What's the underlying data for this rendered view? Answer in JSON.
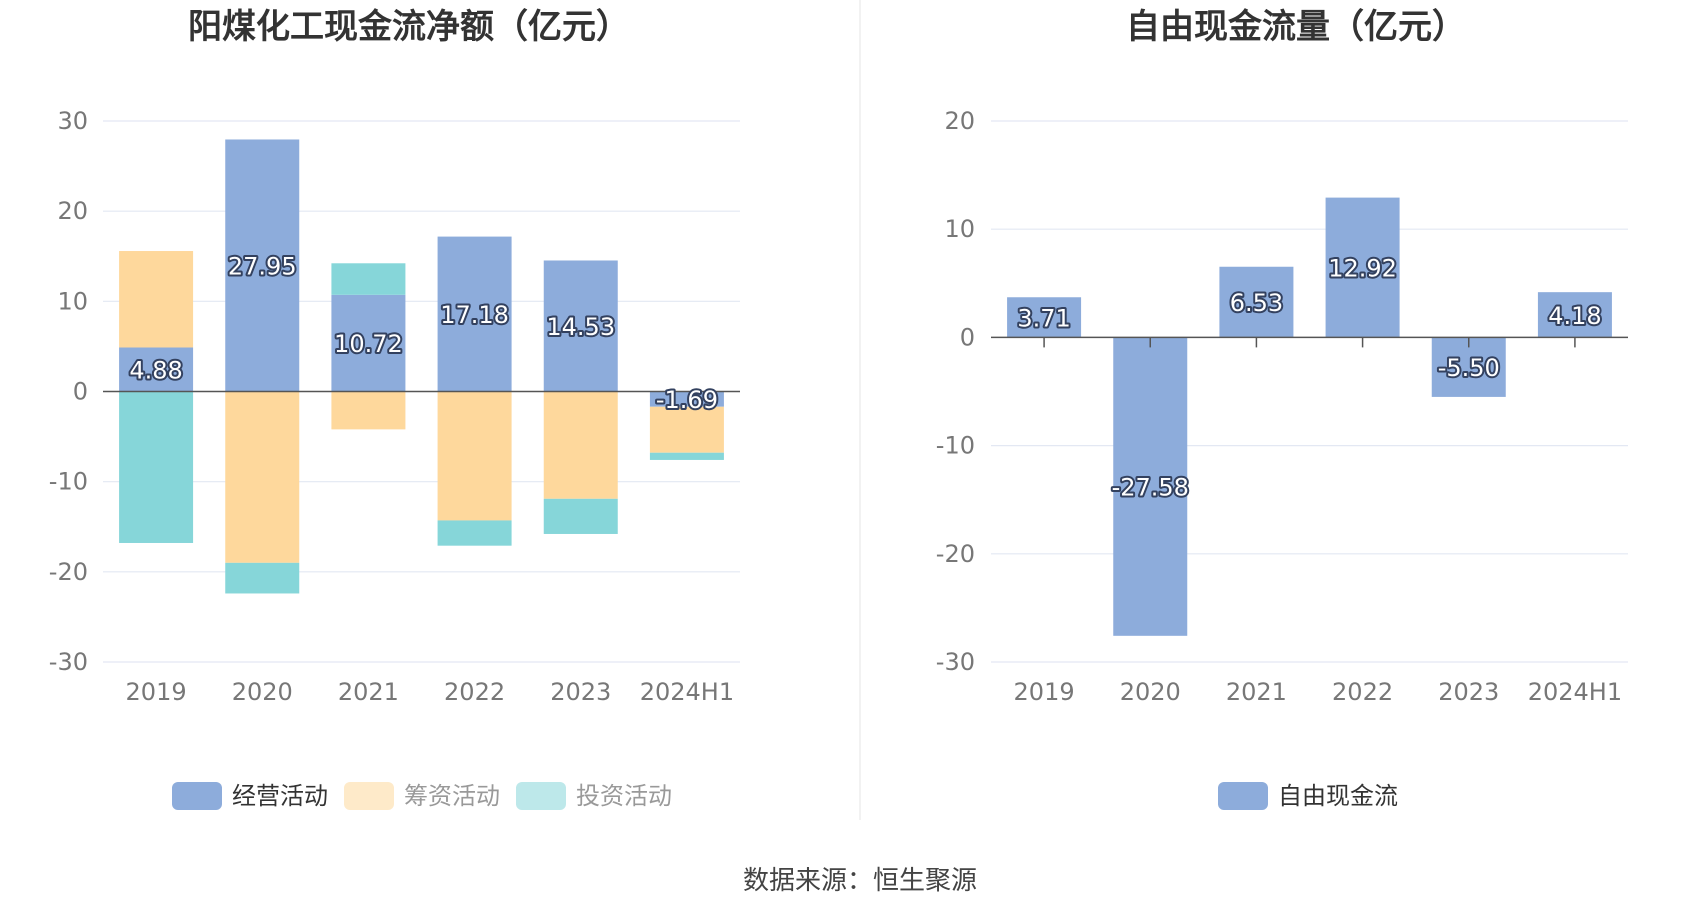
{
  "chart_data": [
    {
      "type": "bar",
      "stacked": true,
      "title": "阳煤化工现金流净额（亿元）",
      "categories": [
        "2019",
        "2020",
        "2021",
        "2022",
        "2023",
        "2024H1"
      ],
      "ylim": [
        -30,
        30
      ],
      "yticks": [
        30,
        20,
        10,
        0,
        -10,
        -20,
        -30
      ],
      "grid": true,
      "legend_position": "bottom",
      "series": [
        {
          "name": "经营活动",
          "color": "#8dacdb",
          "values": [
            4.88,
            27.95,
            10.72,
            17.18,
            14.53,
            -1.69
          ],
          "labels": [
            "4.88",
            "27.95",
            "10.72",
            "17.18",
            "14.53",
            "-1.69"
          ]
        },
        {
          "name": "筹资活动",
          "color": "#fed89c",
          "values": [
            10.7,
            -19.0,
            -4.2,
            -14.3,
            -11.9,
            -5.1
          ]
        },
        {
          "name": "投资活动",
          "color": "#86d6d9",
          "values": [
            -16.8,
            -3.4,
            3.5,
            -2.8,
            -3.9,
            -0.8
          ]
        }
      ]
    },
    {
      "type": "bar",
      "title": "自由现金流量（亿元）",
      "categories": [
        "2019",
        "2020",
        "2021",
        "2022",
        "2023",
        "2024H1"
      ],
      "ylim": [
        -30,
        20
      ],
      "yticks": [
        20,
        10,
        0,
        -10,
        -20,
        -30
      ],
      "grid": true,
      "legend_position": "bottom",
      "series": [
        {
          "name": "自由现金流",
          "color": "#8dacdb",
          "values": [
            3.71,
            -27.58,
            6.53,
            12.92,
            -5.5,
            4.18
          ],
          "labels": [
            "3.71",
            "-27.58",
            "6.53",
            "12.92",
            "-5.50",
            "4.18"
          ]
        }
      ]
    }
  ],
  "source": "数据来源：恒生聚源",
  "colors": {
    "grid": "#e3e8f3",
    "zero_line": "#555555",
    "divider": "#eeeeee",
    "inactive_legend_text": "#999999"
  }
}
